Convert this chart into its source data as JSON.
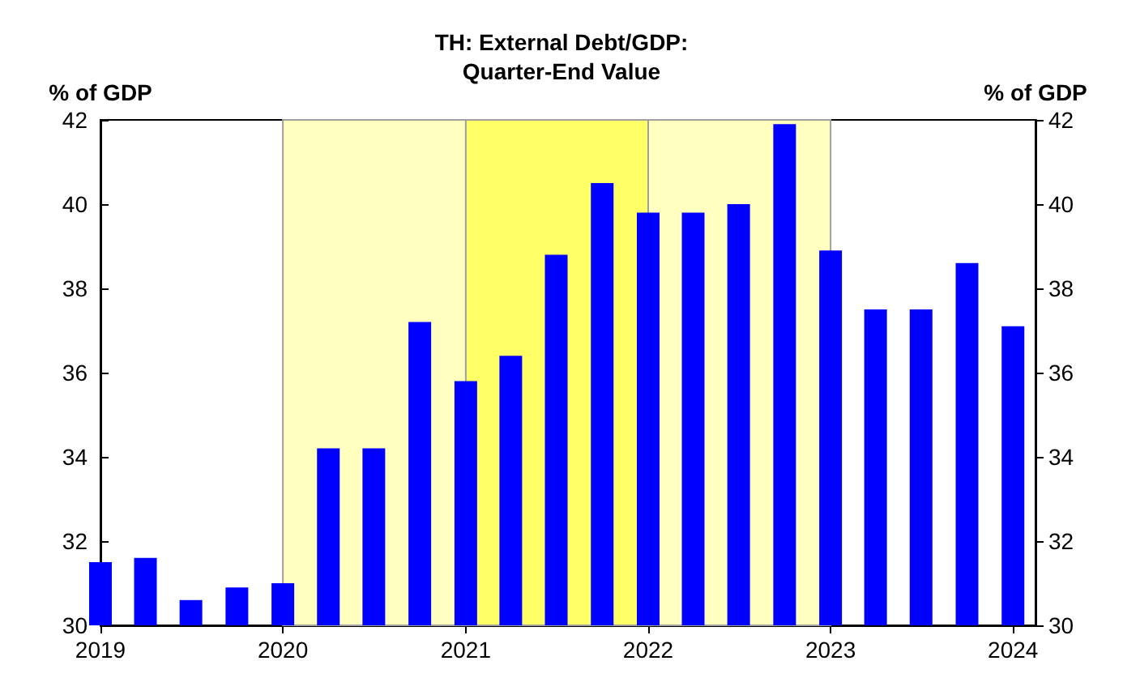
{
  "chart_data": {
    "type": "bar",
    "title": "TH: External Debt/GDP:\nQuarter-End Value",
    "ylabel": "% of GDP",
    "y2label": "% of GDP",
    "x": [
      "2019-01",
      "2019-04",
      "2019-07",
      "2019-10",
      "2020-01",
      "2020-04",
      "2020-07",
      "2020-10",
      "2021-01",
      "2021-04",
      "2021-07",
      "2021-10",
      "2022-01",
      "2022-04",
      "2022-07",
      "2022-10",
      "2023-01",
      "2023-04",
      "2023-07",
      "2023-10",
      "2024-01"
    ],
    "series": [
      {
        "color": "#0000ff",
        "values": [
          31.5,
          31.6,
          30.6,
          30.9,
          31.0,
          34.2,
          34.2,
          37.2,
          35.8,
          36.4,
          38.8,
          40.5,
          39.8,
          39.8,
          40.0,
          41.9,
          38.9,
          37.5,
          37.5,
          38.6,
          37.1
        ]
      }
    ],
    "xlim": [
      "2019-01-01",
      "2024-02-15"
    ],
    "xticks": [
      "2019",
      "2020",
      "2021",
      "2022",
      "2023",
      "2024"
    ],
    "ylim": [
      30,
      42
    ],
    "yticks": [
      30,
      32,
      34,
      36,
      38,
      40,
      42
    ],
    "y2lim": [
      30,
      42
    ],
    "y2ticks": [
      30,
      32,
      34,
      36,
      38,
      40,
      42
    ],
    "bands": [
      {
        "axis": "x",
        "from": "2020-01",
        "to": "2023-01",
        "color": "#ffffc0"
      },
      {
        "axis": "x",
        "from": "2021-01",
        "to": "2022-01",
        "color": "#ffff66"
      }
    ],
    "grid": false
  }
}
